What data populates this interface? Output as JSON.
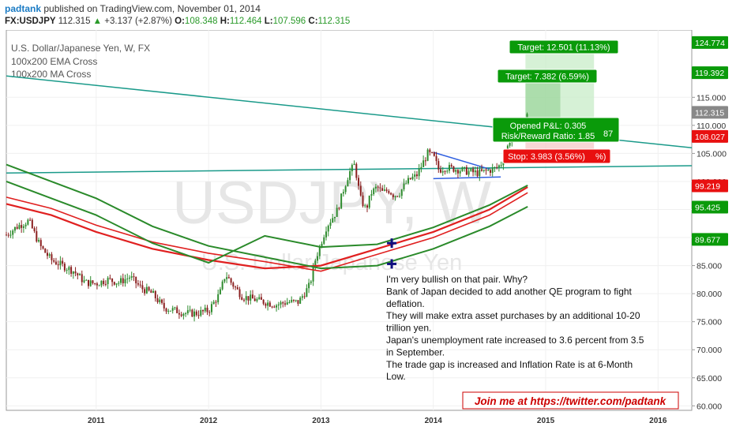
{
  "header": {
    "author": "padtank",
    "published_text": "published on TradingView.com, November 01, 2014",
    "symbol": "FX:USDJPY",
    "last": "112.315",
    "change": "+3.137 (+2.87%)",
    "open_label": "O:",
    "open": "108.348",
    "high_label": "H:",
    "high": "112.464",
    "low_label": "L:",
    "low": "107.596",
    "close_label": "C:",
    "close": "112.315"
  },
  "legend": {
    "title": "U.S. Dollar/Japanese Yen, W, FX",
    "line2": "100x200 EMA Cross",
    "line3": "100x200 MA Cross"
  },
  "watermark": {
    "big": "USDJPY, W",
    "small": "U.S. Dollar/Japanese Yen"
  },
  "colors": {
    "up": "#2e8b2e",
    "down": "#8b2020",
    "ema_red": "#e02020",
    "ma_green": "#2a8a2a",
    "trendline": "#1a9a8a",
    "target_green": "#0a9a0a",
    "stop_red": "#e81010",
    "twitter_red": "#cc0000"
  },
  "chart_data": {
    "type": "line",
    "title": "U.S. Dollar/Japanese Yen, W, FX",
    "xlabel": "",
    "ylabel": "",
    "x_ticks": [
      "2011",
      "2012",
      "2013",
      "2014",
      "2015",
      "2016"
    ],
    "y_ticks": [
      "60.000",
      "65.000",
      "70.000",
      "75.000",
      "80.000",
      "85.000",
      "90.000",
      "95.000",
      "100.000",
      "105.000",
      "110.000",
      "115.000"
    ],
    "xlim": [
      2010.2,
      2016.3
    ],
    "ylim": [
      59.2,
      127.0
    ],
    "series": [
      {
        "name": "USDJPY",
        "x": [
          2010.2,
          2010.3,
          2010.4,
          2010.5,
          2010.6,
          2010.7,
          2010.8,
          2010.9,
          2011.0,
          2011.1,
          2011.2,
          2011.3,
          2011.4,
          2011.5,
          2011.6,
          2011.7,
          2011.8,
          2011.9,
          2012.0,
          2012.05,
          2012.1,
          2012.15,
          2012.2,
          2012.3,
          2012.4,
          2012.5,
          2012.6,
          2012.7,
          2012.8,
          2012.85,
          2012.9,
          2012.95,
          2013.0,
          2013.05,
          2013.1,
          2013.15,
          2013.2,
          2013.25,
          2013.3,
          2013.35,
          2013.4,
          2013.45,
          2013.5,
          2013.55,
          2013.6,
          2013.65,
          2013.7,
          2013.75,
          2013.8,
          2013.85,
          2013.9,
          2013.95,
          2014.0,
          2014.05,
          2014.1,
          2014.2,
          2014.3,
          2014.4,
          2014.5,
          2014.55,
          2014.6,
          2014.65,
          2014.7,
          2014.75,
          2014.8,
          2014.84
        ],
        "y": [
          90.5,
          92.0,
          93.0,
          88.5,
          86.0,
          85.0,
          84.0,
          82.0,
          81.8,
          82.5,
          82.0,
          83.0,
          81.0,
          80.0,
          77.5,
          77.0,
          76.5,
          76.5,
          77.0,
          78.5,
          80.0,
          83.5,
          82.0,
          79.5,
          79.0,
          78.5,
          78.0,
          78.5,
          78.5,
          80.0,
          81.5,
          86.0,
          89.0,
          92.0,
          93.5,
          95.0,
          98.5,
          101.5,
          103.0,
          97.0,
          95.0,
          98.0,
          99.0,
          98.0,
          98.5,
          97.5,
          98.0,
          99.5,
          100.5,
          101.0,
          103.0,
          105.0,
          104.5,
          102.0,
          102.5,
          102.2,
          101.8,
          101.5,
          102.0,
          102.3,
          103.0,
          105.5,
          108.5,
          109.0,
          110.5,
          112.3
        ]
      },
      {
        "name": "100x200 EMA Cross",
        "x": [
          2010.2,
          2010.6,
          2011.0,
          2011.5,
          2012.0,
          2012.5,
          2013.0,
          2013.5,
          2014.0,
          2014.5,
          2014.84
        ],
        "y": [
          96,
          94,
          91,
          88,
          86,
          84.5,
          85,
          88,
          91,
          95,
          99
        ]
      },
      {
        "name": "100x200 MA Cross",
        "x": [
          2010.2,
          2010.6,
          2011.0,
          2011.5,
          2012.0,
          2012.5,
          2013.0,
          2013.5,
          2014.0,
          2014.5,
          2014.84
        ],
        "y": [
          103,
          100,
          97,
          92,
          88.5,
          86.5,
          84.5,
          85,
          88,
          92,
          95.5
        ]
      }
    ],
    "price_labels": [
      {
        "text": "124.774",
        "value": 124.774,
        "color": "#0a9a0a"
      },
      {
        "text": "119.392",
        "value": 119.392,
        "color": "#0a9a0a"
      },
      {
        "text": "112.315",
        "value": 112.315,
        "color": "#888888"
      },
      {
        "text": "108.027",
        "value": 108.027,
        "color": "#e81010"
      },
      {
        "text": "99.219",
        "value": 99.219,
        "color": "#e81010"
      },
      {
        "text": "95.425",
        "value": 95.425,
        "color": "#0a9a0a"
      },
      {
        "text": "89.677",
        "value": 89.677,
        "color": "#0a9a0a"
      }
    ],
    "trade": {
      "target1": "Target: 12.501 (11.13%)",
      "target2": "Target: 7.382 (6.59%)",
      "pnl": "Opened P&L: 0.305",
      "rr": "Risk/Reward Ratio: 1.85",
      "rr_tail": "87",
      "stop": "Stop: 3.983 (3.56%)",
      "stop_tail": "%)",
      "entry": 108.35,
      "target1_price": 124.85,
      "target2_price": 119.2,
      "stop_price": 104.4
    },
    "annotation": {
      "lines": [
        "I'm very bullish on that pair. Why?",
        "Bank of Japan decided to add another QE program to fight",
        "deflation.",
        "They will make extra asset purchases by an additional 10-20",
        "trillion yen.",
        "Japan's unemployment rate increased to 3.6 percent from 3.5",
        "in September.",
        "The trade gap is increased and Inflation Rate is at 6-Month",
        "Low."
      ]
    },
    "twitter": "Join me at https://twitter.com/padtank"
  }
}
